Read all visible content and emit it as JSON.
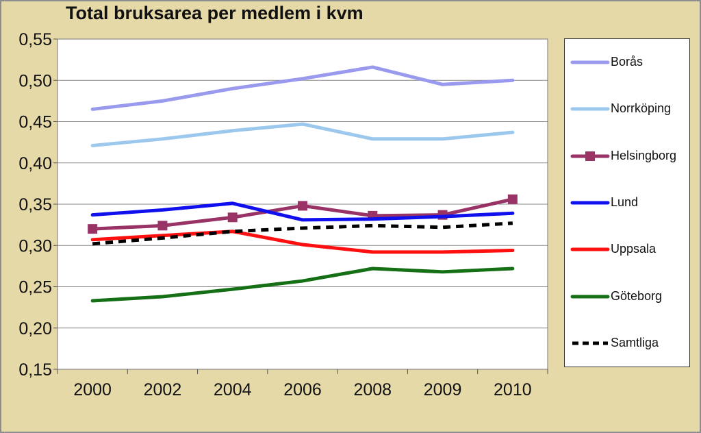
{
  "chart_data": {
    "type": "line",
    "title": "Total bruksarea per medlem i kvm",
    "categories": [
      "2000",
      "2002",
      "2004",
      "2006",
      "2008",
      "2009",
      "2010"
    ],
    "ylim": [
      0.15,
      0.55
    ],
    "yticks": [
      "0,15",
      "0,20",
      "0,25",
      "0,30",
      "0,35",
      "0,40",
      "0,45",
      "0,50",
      "0,55"
    ],
    "ytick_values": [
      0.15,
      0.2,
      0.25,
      0.3,
      0.35,
      0.4,
      0.45,
      0.5,
      0.55
    ],
    "grid": true,
    "legend_position": "right",
    "series": [
      {
        "name": "Borås",
        "color": "#9999ee",
        "style": "solid",
        "marker": "none",
        "values": [
          0.465,
          0.475,
          0.49,
          0.502,
          0.516,
          0.495,
          0.5
        ]
      },
      {
        "name": "Norrköping",
        "color": "#9cc8ee",
        "style": "solid",
        "marker": "none",
        "values": [
          0.421,
          0.429,
          0.439,
          0.447,
          0.429,
          0.429,
          0.437
        ]
      },
      {
        "name": "Helsingborg",
        "color": "#993366",
        "style": "solid",
        "marker": "square",
        "values": [
          0.32,
          0.324,
          0.334,
          0.348,
          0.336,
          0.337,
          0.356
        ]
      },
      {
        "name": "Lund",
        "color": "#1010ee",
        "style": "solid",
        "marker": "none",
        "values": [
          0.337,
          0.343,
          0.351,
          0.331,
          0.332,
          0.335,
          0.339
        ]
      },
      {
        "name": "Uppsala",
        "color": "#ff1010",
        "style": "solid",
        "marker": "none",
        "values": [
          0.307,
          0.312,
          0.317,
          0.301,
          0.292,
          0.292,
          0.294
        ]
      },
      {
        "name": "Göteborg",
        "color": "#157015",
        "style": "solid",
        "marker": "none",
        "values": [
          0.233,
          0.238,
          0.247,
          0.257,
          0.272,
          0.268,
          0.272
        ]
      },
      {
        "name": "Samtliga",
        "color": "#000000",
        "style": "dashed",
        "marker": "none",
        "values": [
          0.302,
          0.309,
          0.317,
          0.321,
          0.324,
          0.322,
          0.327
        ]
      }
    ]
  }
}
